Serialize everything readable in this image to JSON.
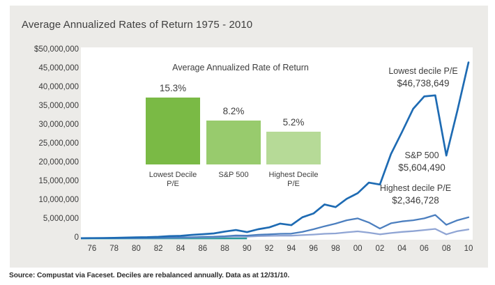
{
  "page": {
    "title": "Average Annualized Rates of Return 1975 - 2010",
    "source_note": "Source: Compustat via Faceset. Deciles are rebalanced annually. Data as at 12/31/10."
  },
  "colors": {
    "panel_bg": "#ECEBE8",
    "plot_bg": "#FFFFFF",
    "axis_baseline_teal": "#2A9A9B",
    "line_lowest_decile": "#1E6BB3",
    "line_sp500": "#4C7FBF",
    "line_highest_decile": "#90A5D4",
    "bar_lowest_decile": "#7ABA45",
    "bar_sp500": "#98CB6D",
    "bar_highest_decile": "#B6DA97",
    "text": "#3D3D3D"
  },
  "chart_data": [
    {
      "type": "line",
      "title": "Average Annualized Rates of Return 1975 - 2010",
      "xlabel": "",
      "ylabel": "",
      "unit": "USD (values stored in millions)",
      "ylim": [
        0,
        50000000
      ],
      "grid": false,
      "y_tick_labels": [
        "$50,000,000",
        "45,000,000",
        "40,000,000",
        "35,000,000",
        "30,000,000",
        "25,000,000",
        "20,000,000",
        "15,000,000",
        "10,000,000",
        "5,000,000",
        "0"
      ],
      "x_tick_labels": [
        "76",
        "78",
        "80",
        "82",
        "84",
        "86",
        "88",
        "90",
        "92",
        "94",
        "96",
        "98",
        "00",
        "02",
        "04",
        "06",
        "08",
        "10"
      ],
      "x_tick_years": [
        1976,
        1978,
        1980,
        1982,
        1984,
        1986,
        1988,
        1990,
        1992,
        1994,
        1996,
        1998,
        2000,
        2002,
        2004,
        2006,
        2008,
        2010
      ],
      "years": [
        1975,
        1976,
        1977,
        1978,
        1979,
        1980,
        1981,
        1982,
        1983,
        1984,
        1985,
        1986,
        1987,
        1988,
        1989,
        1990,
        1991,
        1992,
        1993,
        1994,
        1995,
        1996,
        1997,
        1998,
        1999,
        2000,
        2001,
        2002,
        2003,
        2004,
        2005,
        2006,
        2007,
        2008,
        2009,
        2010
      ],
      "series": [
        {
          "name": "Lowest decile P/E",
          "color": "#1E6BB3",
          "final_value_label": "$46,738,649",
          "values_musd": [
            0.01,
            0.05,
            0.08,
            0.12,
            0.18,
            0.25,
            0.3,
            0.4,
            0.6,
            0.65,
            0.9,
            1.1,
            1.3,
            1.8,
            2.2,
            1.65,
            2.4,
            2.9,
            3.9,
            3.5,
            5.6,
            6.6,
            9.0,
            8.3,
            10.5,
            12.0,
            14.8,
            14.3,
            22.4,
            28.3,
            34.4,
            37.7,
            38.0,
            22.0,
            34.0,
            46.74
          ]
        },
        {
          "name": "S&P 500",
          "color": "#4C7FBF",
          "final_value_label": "$5,604,490",
          "values_musd": [
            0.01,
            0.02,
            0.03,
            0.04,
            0.06,
            0.08,
            0.09,
            0.12,
            0.18,
            0.2,
            0.28,
            0.38,
            0.42,
            0.55,
            0.75,
            0.7,
            0.95,
            1.05,
            1.2,
            1.25,
            1.7,
            2.4,
            3.2,
            3.9,
            4.8,
            5.3,
            4.2,
            2.6,
            4.0,
            4.5,
            4.8,
            5.3,
            6.2,
            3.6,
            4.8,
            5.6
          ]
        },
        {
          "name": "Highest decile P/E",
          "color": "#90A5D4",
          "final_value_label": "$2,346,728",
          "values_musd": [
            0.01,
            0.02,
            0.02,
            0.03,
            0.05,
            0.06,
            0.07,
            0.09,
            0.14,
            0.15,
            0.2,
            0.28,
            0.3,
            0.4,
            0.5,
            0.45,
            0.6,
            0.65,
            0.7,
            0.7,
            0.85,
            1.0,
            1.2,
            1.3,
            1.6,
            1.85,
            1.5,
            1.05,
            1.4,
            1.7,
            1.9,
            2.2,
            2.5,
            1.05,
            1.9,
            2.35
          ]
        }
      ],
      "annotations": [
        {
          "series": "Lowest decile P/E",
          "value": "$46,738,649"
        },
        {
          "series": "S&P 500",
          "value": "$5,604,490"
        },
        {
          "series": "Highest decile P/E",
          "value": "$2,346,728"
        }
      ],
      "baseline": {
        "color": "#2A9A9B",
        "year_start": 1975,
        "year_end": 1990
      }
    },
    {
      "type": "bar",
      "title": "Average Annualized Rate of Return",
      "categories": [
        "Lowest Decile P/E",
        "S&P 500",
        "Highest Decile P/E"
      ],
      "category_lines": [
        [
          "Lowest Decile",
          "P/E"
        ],
        [
          "S&P 500",
          ""
        ],
        [
          "Highest Decile",
          "P/E"
        ]
      ],
      "values": [
        15.3,
        8.2,
        5.2
      ],
      "value_labels": [
        "15.3%",
        "8.2%",
        "5.2%"
      ],
      "colors": [
        "#7ABA45",
        "#98CB6D",
        "#B6DA97"
      ],
      "legend": "none",
      "grid": false
    }
  ]
}
